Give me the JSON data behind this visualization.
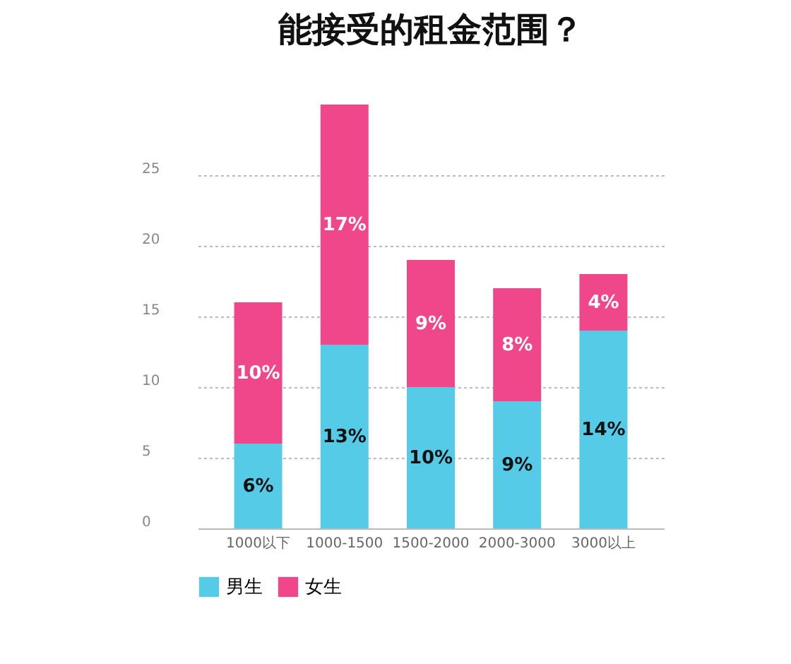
{
  "chart_data": {
    "type": "bar",
    "title": "能接受的租金范围？",
    "stacked": true,
    "categories": [
      "1000以下",
      "1000-1500",
      "1500-2000",
      "2000-3000",
      "3000以上"
    ],
    "series": [
      {
        "name": "男生",
        "color": "#55cbe8",
        "values": [
          6,
          13,
          10,
          9,
          14
        ],
        "value_labels": [
          "6%",
          "13%",
          "10%",
          "9%",
          "14%"
        ]
      },
      {
        "name": "女生",
        "color": "#f0468a",
        "values": [
          10,
          17,
          9,
          8,
          4
        ],
        "value_labels": [
          "10%",
          "17%",
          "9%",
          "8%",
          "4%"
        ]
      }
    ],
    "ylim": [
      0,
      30
    ],
    "yticks": [
      0,
      5,
      10,
      15,
      20,
      25
    ],
    "grid": "y",
    "legend": "bottom"
  }
}
